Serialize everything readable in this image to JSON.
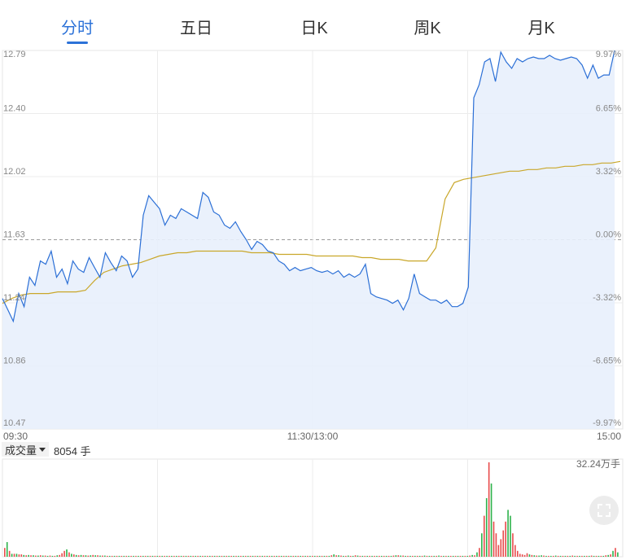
{
  "tabs": [
    {
      "label": "分时",
      "active": true
    },
    {
      "label": "五日",
      "active": false
    },
    {
      "label": "日K",
      "active": false
    },
    {
      "label": "周K",
      "active": false
    },
    {
      "label": "月K",
      "active": false
    }
  ],
  "volume_panel": {
    "selector_label": "成交量",
    "current_value": "8054 手",
    "max_label": "32.24万手"
  },
  "fullscreen_icon": "expand-icon",
  "colors": {
    "accent": "#2c72d8",
    "price_line": "#2b6fd6",
    "avg_line": "#c9a72a",
    "area_fill": "#e8f0fc",
    "up": "#e84c4c",
    "down": "#2db24b"
  },
  "chart_data": [
    {
      "type": "line",
      "price_ticks_left": [
        "12.79",
        "12.40",
        "12.02",
        "11.63",
        "11.24",
        "10.86",
        "10.47"
      ],
      "pct_ticks_right": [
        "9.97%",
        "6.65%",
        "3.32%",
        "0.00%",
        "-3.32%",
        "-6.65%",
        "-9.97%"
      ],
      "x_ticks": [
        "09:30",
        "11:30/13:00",
        "15:00"
      ],
      "ylim": [
        10.47,
        12.79
      ],
      "reference_price": 11.63,
      "grid": true,
      "series": [
        {
          "values": [
            11.27,
            11.2,
            11.13,
            11.3,
            11.22,
            11.4,
            11.35,
            11.5,
            11.48,
            11.56,
            11.4,
            11.45,
            11.36,
            11.5,
            11.45,
            11.43,
            11.52,
            11.46,
            11.4,
            11.55,
            11.49,
            11.44,
            11.53,
            11.5,
            11.4,
            11.45,
            11.78,
            11.9,
            11.86,
            11.82,
            11.72,
            11.78,
            11.76,
            11.82,
            11.8,
            11.78,
            11.76,
            11.92,
            11.89,
            11.8,
            11.78,
            11.72,
            11.7,
            11.74,
            11.68,
            11.63,
            11.57,
            11.62,
            11.6,
            11.56,
            11.55,
            11.5,
            11.48,
            11.44,
            11.46,
            11.44,
            11.45,
            11.46,
            11.44,
            11.43,
            11.44,
            11.42,
            11.44,
            11.4,
            11.42,
            11.4,
            11.42,
            11.48,
            11.3,
            11.28,
            11.27,
            11.26,
            11.24,
            11.26,
            11.2,
            11.27,
            11.42,
            11.3,
            11.28,
            11.26,
            11.26,
            11.24,
            11.26,
            11.22,
            11.22,
            11.24,
            11.34,
            12.5,
            12.58,
            12.72,
            12.74,
            12.6,
            12.78,
            12.72,
            12.68,
            12.74,
            12.72,
            12.74,
            12.75,
            12.74,
            12.74,
            12.76,
            12.74,
            12.73,
            12.74,
            12.75,
            12.74,
            12.7,
            12.62,
            12.7,
            12.62,
            12.64,
            12.64,
            12.79
          ]
        },
        {
          "values": [
            11.24,
            11.27,
            11.29,
            11.3,
            11.3,
            11.3,
            11.31,
            11.31,
            11.31,
            11.32,
            11.38,
            11.43,
            11.45,
            11.47,
            11.48,
            11.49,
            11.51,
            11.53,
            11.54,
            11.55,
            11.55,
            11.56,
            11.56,
            11.56,
            11.56,
            11.56,
            11.56,
            11.55,
            11.55,
            11.55,
            11.54,
            11.54,
            11.54,
            11.54,
            11.53,
            11.53,
            11.53,
            11.53,
            11.53,
            11.52,
            11.52,
            11.51,
            11.51,
            11.51,
            11.5,
            11.5,
            11.5,
            11.58,
            11.88,
            11.98,
            12.0,
            12.01,
            12.02,
            12.03,
            12.04,
            12.05,
            12.05,
            12.06,
            12.06,
            12.07,
            12.07,
            12.08,
            12.08,
            12.09,
            12.09,
            12.1,
            12.1,
            12.11
          ]
        }
      ]
    },
    {
      "type": "bar",
      "max_value_label": "32.24万手",
      "ylim": [
        0,
        32.24
      ],
      "values": [
        3,
        5,
        2,
        1,
        1,
        1,
        0.8,
        0.8,
        0.6,
        0.5,
        0.6,
        0.5,
        0.5,
        0.4,
        0.4,
        0.5,
        0.4,
        0.4,
        0.3,
        0.4,
        0.3,
        0.3,
        0.5,
        0.6,
        1.2,
        2,
        2.5,
        1.5,
        1,
        0.8,
        0.6,
        0.5,
        0.6,
        0.5,
        0.5,
        0.4,
        0.5,
        0.6,
        0.5,
        0.5,
        0.4,
        0.4,
        0.4,
        0.3,
        0.3,
        0.3,
        0.3,
        0.3,
        0.3,
        0.3,
        0.3,
        0.3,
        0.3,
        0.3,
        0.3,
        0.3,
        0.3,
        0.3,
        0.3,
        0.3,
        0.3,
        0.3,
        0.3,
        0.3,
        0.3,
        0.3,
        0.3,
        0.3,
        0.3,
        0.3,
        0.3,
        0.3,
        0.3,
        0.3,
        0.3,
        0.3,
        0.3,
        0.3,
        0.3,
        0.3,
        0.3,
        0.3,
        0.3,
        0.3,
        0.3,
        0.3,
        0.3,
        0.3,
        0.3,
        0.3,
        0.3,
        0.3,
        0.3,
        0.3,
        0.3,
        0.3,
        0.3,
        0.3,
        0.3,
        0.3,
        0.3,
        0.3,
        0.3,
        0.3,
        0.3,
        0.3,
        0.3,
        0.3,
        0.3,
        0.3,
        0.3,
        0.3,
        0.3,
        0.3,
        0.3,
        0.3,
        0.3,
        0.3,
        0.3,
        0.3,
        0.3,
        0.3,
        0.3,
        0.3,
        0.3,
        0.3,
        0.3,
        0.3,
        0.3,
        0.3,
        0.3,
        0.3,
        0.3,
        0.3,
        0.3,
        0.3,
        0.3,
        0.5,
        0.8,
        0.5,
        0.5,
        0.4,
        0.3,
        0.3,
        0.4,
        0.3,
        0.3,
        0.5,
        0.4,
        0.3,
        0.3,
        0.3,
        0.3,
        0.3,
        0.3,
        0.3,
        0.3,
        0.3,
        0.3,
        0.3,
        0.3,
        0.3,
        0.3,
        0.4,
        0.5,
        0.5,
        0.4,
        0.4,
        0.3,
        0.3,
        0.3,
        0.3,
        0.3,
        0.3,
        0.3,
        0.3,
        0.4,
        0.3,
        0.3,
        0.3,
        0.3,
        0.3,
        0.4,
        0.3,
        0.3,
        0.3,
        0.3,
        0.3,
        0.3,
        0.3,
        0.3,
        0.3,
        0.3,
        0.3,
        0.3,
        0.4,
        0.6,
        0.5,
        1.5,
        3,
        8,
        14,
        20,
        32.24,
        25,
        12,
        8,
        4,
        6,
        9,
        12,
        16,
        14,
        8,
        4,
        2,
        1,
        0.8,
        0.6,
        1.2,
        0.8,
        0.6,
        0.5,
        0.4,
        0.4,
        0.5,
        0.4,
        0.3,
        0.3,
        0.3,
        0.3,
        0.4,
        0.3,
        0.3,
        0.3,
        0.3,
        0.3,
        0.3,
        0.4,
        0.3,
        0.3,
        0.3,
        0.3,
        0.3,
        0.3,
        0.3,
        0.4,
        0.3,
        0.3,
        0.3,
        0.3,
        0.3,
        0.5,
        0.6,
        0.8,
        2,
        3,
        1.5
      ],
      "colors": [
        "u",
        "d",
        "u",
        "d",
        "u",
        "d",
        "u",
        "u",
        "d",
        "u",
        "d",
        "u",
        "d",
        "u",
        "d",
        "u",
        "d",
        "u",
        "d",
        "u",
        "d",
        "u",
        "d",
        "u",
        "u",
        "u",
        "d",
        "u",
        "d",
        "u",
        "d",
        "u",
        "d",
        "u",
        "d",
        "u",
        "d",
        "u",
        "d",
        "u",
        "d",
        "u",
        "d",
        "u",
        "d",
        "u",
        "d",
        "u",
        "d",
        "u",
        "d",
        "u",
        "d",
        "u",
        "d",
        "u",
        "d",
        "u",
        "d",
        "u",
        "d",
        "u",
        "d",
        "u",
        "d",
        "u",
        "d",
        "u",
        "d",
        "u",
        "d",
        "u",
        "d",
        "u",
        "d",
        "u",
        "d",
        "u",
        "d",
        "u",
        "d",
        "u",
        "d",
        "u",
        "d",
        "u",
        "d",
        "u",
        "d",
        "u",
        "d",
        "u",
        "d",
        "u",
        "d",
        "u",
        "d",
        "u",
        "d",
        "u",
        "d",
        "u",
        "d",
        "u",
        "d",
        "u",
        "d",
        "u",
        "d",
        "u",
        "d",
        "u",
        "d",
        "u",
        "d",
        "u",
        "d",
        "u",
        "d",
        "u",
        "d",
        "u",
        "d",
        "u",
        "d",
        "u",
        "d",
        "u",
        "d",
        "u",
        "d",
        "u",
        "d",
        "u",
        "d",
        "u",
        "d",
        "u",
        "d",
        "u",
        "d",
        "u",
        "d",
        "u",
        "d",
        "u",
        "d",
        "u",
        "d",
        "u",
        "d",
        "u",
        "d",
        "u",
        "d",
        "u",
        "d",
        "u",
        "d",
        "u",
        "d",
        "u",
        "d",
        "u",
        "d",
        "u",
        "d",
        "u",
        "d",
        "u",
        "d",
        "u",
        "d",
        "u",
        "d",
        "u",
        "d",
        "u",
        "d",
        "u",
        "d",
        "u",
        "d",
        "u",
        "d",
        "u",
        "d",
        "u",
        "d",
        "u",
        "d",
        "u",
        "d",
        "u",
        "d",
        "u",
        "d",
        "u",
        "d",
        "u",
        "d",
        "u",
        "d",
        "u",
        "d",
        "u",
        "u",
        "u",
        "u",
        "u",
        "u",
        "d",
        "d",
        "u",
        "u",
        "u",
        "u",
        "u",
        "u",
        "u",
        "d",
        "u",
        "d",
        "u",
        "d",
        "d",
        "u",
        "d",
        "u",
        "d",
        "u",
        "d",
        "u",
        "d",
        "u",
        "d",
        "u",
        "d",
        "u",
        "d",
        "u",
        "d",
        "u",
        "d",
        "u",
        "d",
        "u",
        "d",
        "u",
        "d",
        "u",
        "d",
        "u",
        "d",
        "u",
        "d",
        "u",
        "d",
        "u",
        "d",
        "u",
        "d",
        "u",
        "u",
        "d"
      ]
    }
  ]
}
